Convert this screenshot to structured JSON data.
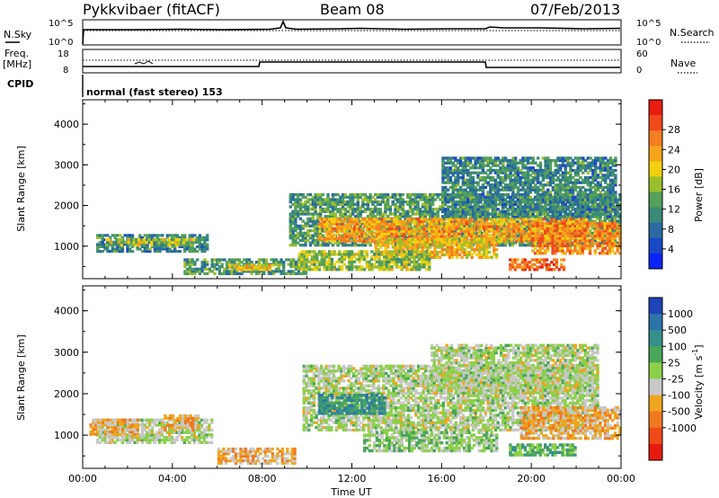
{
  "header": {
    "radar": "Pykkvibaer (fitACF)",
    "beam": "Beam 08",
    "date": "07/Feb/2013"
  },
  "strip_panels": {
    "nsky_label": "N.Sky",
    "nsky_ticks": [
      "10^5",
      "10^0"
    ],
    "nsearch_label": "N.Search",
    "nsearch_ticks": [
      "10^5",
      "10^0"
    ],
    "freq_label_1": "Freq.",
    "freq_label_2": "[MHz]",
    "freq_ticks": [
      "18",
      "8"
    ],
    "nave_label": "Nave",
    "nave_ticks": [
      "60",
      "0"
    ],
    "cpid_label": "CPID",
    "cpid_text": "normal (fast stereo) 153"
  },
  "power_panel": {
    "ylabel": "Slant Range [km]",
    "yticks": [
      "4000",
      "3000",
      "2000",
      "1000"
    ],
    "colorbar_label": "Power [dB]",
    "colorbar_ticks": [
      "28",
      "24",
      "20",
      "16",
      "12",
      "8",
      "4"
    ],
    "colorbar_colors": [
      "#0b24f5",
      "#1a49c8",
      "#2a6aa0",
      "#3a8a78",
      "#55a05a",
      "#9bbf2c",
      "#f0d010",
      "#f5a41b",
      "#f57d22",
      "#f04a1c",
      "#e81d12"
    ]
  },
  "velocity_panel": {
    "ylabel": "Slant Range [km]",
    "yticks": [
      "4000",
      "3000",
      "2000",
      "1000"
    ],
    "colorbar_label": "Velocity [m s",
    "colorbar_label_sup": "-1",
    "colorbar_label_end": "]",
    "colorbar_ticks": [
      "1000",
      "500",
      "100",
      "25",
      "-25",
      "-100",
      "-500",
      "-1000"
    ],
    "colorbar_colors": [
      "#1f43b8",
      "#2b73a8",
      "#36908a",
      "#4aa65a",
      "#8cd04a",
      "#c8c8c8",
      "#f0a51e",
      "#f07820",
      "#f04a18",
      "#e81a10"
    ]
  },
  "time_axis": {
    "xlabel": "Time UT",
    "ticks": [
      "00:00",
      "04:00",
      "08:00",
      "12:00",
      "16:00",
      "20:00",
      "00:00"
    ]
  },
  "chart_data": [
    {
      "type": "heatmap",
      "title": "Power",
      "xlabel": "Time UT",
      "ylabel": "Slant Range [km]",
      "xlim": [
        0,
        24
      ],
      "ylim": [
        200,
        4600
      ],
      "colorbar": {
        "label": "Power [dB]",
        "range": [
          0,
          32
        ],
        "ticks": [
          4,
          8,
          12,
          16,
          20,
          24,
          28
        ]
      },
      "regions": [
        {
          "t": [
            0.6,
            5.6
          ],
          "range": [
            850,
            1300
          ],
          "value": 10
        },
        {
          "t": [
            1.0,
            5.0
          ],
          "range": [
            1000,
            1200
          ],
          "value": 16
        },
        {
          "t": [
            4.5,
            10.0
          ],
          "range": [
            300,
            700
          ],
          "value": 12
        },
        {
          "t": [
            6.5,
            8.5
          ],
          "range": [
            400,
            560
          ],
          "value": 20
        },
        {
          "t": [
            9.2,
            24.0
          ],
          "range": [
            1000,
            2300
          ],
          "value": 12
        },
        {
          "t": [
            10.5,
            22.5
          ],
          "range": [
            1100,
            1700
          ],
          "value": 22
        },
        {
          "t": [
            13.0,
            18.5
          ],
          "range": [
            700,
            1200
          ],
          "value": 20
        },
        {
          "t": [
            9.6,
            15.5
          ],
          "range": [
            400,
            900
          ],
          "value": 16
        },
        {
          "t": [
            16.0,
            23.8
          ],
          "range": [
            1700,
            3200
          ],
          "value": 10
        },
        {
          "t": [
            19.0,
            21.5
          ],
          "range": [
            400,
            700
          ],
          "value": 26
        },
        {
          "t": [
            20.0,
            24.0
          ],
          "range": [
            800,
            1600
          ],
          "value": 24
        }
      ]
    },
    {
      "type": "heatmap",
      "title": "Velocity",
      "xlabel": "Time UT",
      "ylabel": "Slant Range [km]",
      "xlim": [
        0,
        24
      ],
      "ylim": [
        200,
        4600
      ],
      "colorbar": {
        "label": "Velocity [m s-1]",
        "range": [
          -1000,
          1000
        ],
        "ticks": [
          1000,
          500,
          100,
          25,
          -25,
          -100,
          -500,
          -1000
        ]
      },
      "regions": [
        {
          "t": [
            0.6,
            5.8
          ],
          "range": [
            800,
            1400
          ],
          "value": 0
        },
        {
          "t": [
            0.3,
            2.5
          ],
          "range": [
            1000,
            1400
          ],
          "value": -300
        },
        {
          "t": [
            3.5,
            5.2
          ],
          "range": [
            1100,
            1500
          ],
          "value": -300
        },
        {
          "t": [
            6.0,
            9.5
          ],
          "range": [
            300,
            700
          ],
          "value": -250
        },
        {
          "t": [
            9.8,
            23.0
          ],
          "range": [
            1100,
            2700
          ],
          "value": 0
        },
        {
          "t": [
            15.5,
            23.0
          ],
          "range": [
            2000,
            3200
          ],
          "value": 0
        },
        {
          "t": [
            12.5,
            18.5
          ],
          "range": [
            600,
            1100
          ],
          "value": 100
        },
        {
          "t": [
            10.5,
            13.5
          ],
          "range": [
            1500,
            2000
          ],
          "value": 500
        },
        {
          "t": [
            19.5,
            24.0
          ],
          "range": [
            900,
            1700
          ],
          "value": -300
        },
        {
          "t": [
            19.0,
            22.0
          ],
          "range": [
            500,
            800
          ],
          "value": 300
        }
      ]
    }
  ]
}
